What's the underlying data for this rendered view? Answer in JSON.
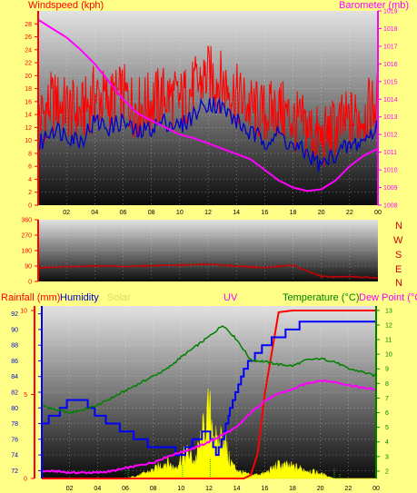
{
  "labels": {
    "windspeed": "Windspeed (kph)",
    "barometer": "Barometer (mb)",
    "dirN1": "N",
    "dirW": "W",
    "dirS": "S",
    "dirE": "E",
    "dirN2": "N",
    "rainfall": "Rainfall (mm)",
    "humidity": "Humidity",
    "solar": "Solar",
    "uv": "UV",
    "temperature": "Temperature (°C)",
    "dewpoint": "Dew Point (°C"
  },
  "colors": {
    "bg": "#ffff88",
    "wind_gust": "#ff0000",
    "wind_avg": "#0000cc",
    "barometer": "#ff00ff",
    "direction": "#cc0000",
    "rain": "#ff0000",
    "humidity": "#0000ff",
    "solar": "#ffff00",
    "temperature": "#008000",
    "dewpoint": "#ff00ff",
    "uv": "#00cc00"
  },
  "chart_data": [
    {
      "type": "line",
      "xticks": [
        "02",
        "04",
        "06",
        "08",
        "10",
        "12",
        "14",
        "16",
        "18",
        "20",
        "22",
        "00"
      ],
      "y_left_ticks": [
        "0",
        "2",
        "4",
        "6",
        "8",
        "10",
        "12",
        "14",
        "16",
        "18",
        "20",
        "22",
        "24",
        "26",
        "28"
      ],
      "y_right_ticks": [
        "1008",
        "1009",
        "1010",
        "1011",
        "1012",
        "1013",
        "1014",
        "1015",
        "1016",
        "1017",
        "1018",
        "1019"
      ],
      "ylim_left": [
        0,
        30
      ],
      "ylim_right": [
        1008,
        1019
      ],
      "series": [
        {
          "name": "Windspeed (kph)",
          "axis": "left",
          "x": [
            0,
            1,
            2,
            3,
            4,
            5,
            6,
            7,
            8,
            9,
            10,
            11,
            12,
            13,
            14,
            15,
            16,
            17,
            18,
            19,
            20,
            21,
            22,
            23,
            24
          ],
          "values": [
            9,
            12,
            11,
            10,
            13,
            12,
            13,
            11,
            12,
            13,
            12,
            14,
            16,
            15,
            13,
            11,
            10,
            11,
            9,
            8,
            6,
            8,
            9,
            10,
            12
          ]
        },
        {
          "name": "Barometer (mb)",
          "axis": "right",
          "x": [
            0,
            1,
            2,
            3,
            4,
            5,
            6,
            7,
            8,
            9,
            10,
            11,
            12,
            13,
            14,
            15,
            16,
            17,
            18,
            19,
            20,
            21,
            22,
            23,
            24
          ],
          "values": [
            1018.5,
            1018,
            1017.5,
            1016.8,
            1016,
            1015,
            1014,
            1013.2,
            1012.8,
            1012.4,
            1012,
            1011.8,
            1011.5,
            1011.2,
            1010.9,
            1010.6,
            1010,
            1009.4,
            1009,
            1008.8,
            1008.9,
            1009.4,
            1010.2,
            1010.8,
            1011.2
          ]
        }
      ]
    },
    {
      "type": "line",
      "xticks": [
        "02",
        "04",
        "06",
        "08",
        "10",
        "12",
        "14",
        "16",
        "18",
        "20",
        "22",
        "00"
      ],
      "y_ticks": [
        "0",
        "90",
        "180",
        "270",
        "360"
      ],
      "ylim": [
        0,
        360
      ],
      "series": [
        {
          "name": "Wind Direction",
          "x": [
            0,
            2,
            4,
            6,
            8,
            10,
            12,
            14,
            16,
            18,
            19,
            20,
            21,
            22,
            23,
            24
          ],
          "values": [
            80,
            85,
            90,
            88,
            92,
            95,
            100,
            90,
            80,
            95,
            60,
            30,
            25,
            30,
            25,
            20
          ]
        }
      ]
    },
    {
      "type": "line",
      "xticks": [
        "02",
        "04",
        "06",
        "08",
        "10",
        "12",
        "14",
        "16",
        "18",
        "20",
        "22",
        "00"
      ],
      "y_left_ticks": [
        "0",
        "5",
        "10"
      ],
      "y_hum_ticks": [
        "72",
        "74",
        "76",
        "78",
        "80",
        "82",
        "84",
        "86",
        "88",
        "90",
        "92"
      ],
      "y_right_ticks": [
        "2",
        "3",
        "4",
        "5",
        "6",
        "7",
        "8",
        "9",
        "10",
        "11",
        "12",
        "13"
      ],
      "ylim_rain": [
        0,
        10
      ],
      "ylim_hum": [
        71,
        93
      ],
      "ylim_temp": [
        1.5,
        13.3
      ],
      "series": [
        {
          "name": "Rainfall (mm)",
          "axis": "rain",
          "x": [
            0,
            2,
            4,
            6,
            8,
            10,
            12,
            13,
            14,
            14.5,
            15,
            15.5,
            16,
            17,
            18,
            19,
            20,
            21,
            22,
            23,
            24
          ],
          "values": [
            0,
            0,
            0,
            0,
            0,
            0,
            0,
            0,
            0,
            0,
            0.2,
            1.5,
            5,
            9.9,
            10,
            10,
            10,
            10,
            10,
            10,
            10
          ]
        },
        {
          "name": "Humidity",
          "axis": "hum",
          "x": [
            0,
            1,
            2,
            3,
            4,
            5,
            6,
            7,
            8,
            9,
            10,
            11,
            12,
            12.5,
            13,
            13.5,
            14,
            14.5,
            15,
            16,
            17,
            18,
            19,
            20,
            21,
            22,
            23,
            24
          ],
          "values": [
            78,
            79,
            81,
            81,
            79,
            78,
            77,
            76,
            75,
            75,
            74,
            76,
            77,
            74,
            76,
            80,
            82,
            85,
            86,
            88,
            89,
            90,
            91,
            91,
            91,
            91,
            91,
            91
          ]
        },
        {
          "name": "Temperature (°C)",
          "axis": "temp",
          "x": [
            0,
            1,
            2,
            3,
            4,
            5,
            6,
            7,
            8,
            9,
            10,
            11,
            12,
            13,
            14,
            15,
            16,
            17,
            18,
            19,
            20,
            21,
            22,
            23,
            24
          ],
          "values": [
            6.5,
            6.2,
            6.0,
            6.2,
            6.5,
            7.0,
            7.5,
            8.0,
            8.5,
            9.0,
            9.8,
            10.5,
            11.2,
            12.0,
            11.0,
            9.6,
            9.5,
            9.3,
            9.2,
            9.6,
            9.7,
            9.5,
            9.0,
            8.8,
            8.5
          ]
        },
        {
          "name": "Dew Point (°C",
          "axis": "temp",
          "x": [
            0,
            1,
            2,
            3,
            4,
            5,
            6,
            7,
            8,
            9,
            10,
            11,
            12,
            13,
            14,
            15,
            16,
            17,
            18,
            19,
            20,
            21,
            22,
            23,
            24
          ],
          "values": [
            2.0,
            2.0,
            1.9,
            1.9,
            1.9,
            2.0,
            2.2,
            2.4,
            2.6,
            3.0,
            3.3,
            3.6,
            4.0,
            4.5,
            5.0,
            6.0,
            6.8,
            7.3,
            7.6,
            8.0,
            8.2,
            8.1,
            7.9,
            7.7,
            7.6
          ]
        },
        {
          "name": "Solar",
          "axis": "rain",
          "x": [
            0,
            6,
            7,
            8,
            9,
            9.5,
            10,
            10.5,
            11,
            11.5,
            12,
            12.3,
            12.6,
            13,
            13.4,
            13.8,
            14.2,
            14.6,
            15,
            16,
            17,
            18,
            19,
            20,
            21,
            24
          ],
          "values": [
            0,
            0,
            0.2,
            0.5,
            1.0,
            0.6,
            1.2,
            1.5,
            1.0,
            2.5,
            4.0,
            3.2,
            1.8,
            2.8,
            1.2,
            0.7,
            0.4,
            0.3,
            0.2,
            0.3,
            0.8,
            0.7,
            0.5,
            0.3,
            0,
            0
          ]
        },
        {
          "name": "UV",
          "axis": "rain",
          "x": [
            6,
            7,
            8,
            9,
            10,
            11,
            12,
            13,
            14,
            15,
            16,
            17,
            18,
            19,
            20,
            21,
            22
          ],
          "values": [
            0,
            0.3,
            0.6,
            1.0,
            1.3,
            1.6,
            2.0,
            1.6,
            1.0,
            0.6,
            0.4,
            0.6,
            0.5,
            0.3,
            0.2,
            0,
            0
          ]
        }
      ]
    }
  ]
}
